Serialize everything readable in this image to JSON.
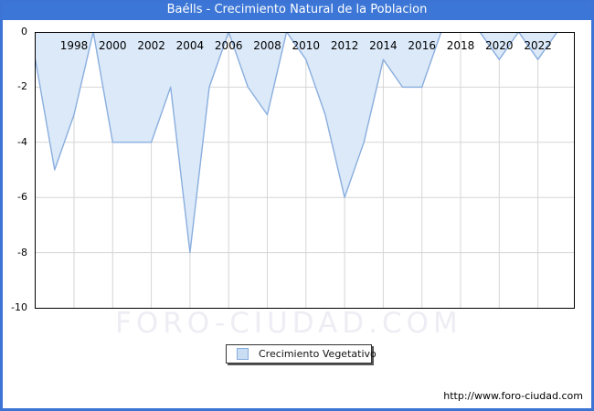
{
  "title_bar": {
    "text": "Baélls - Crecimiento Natural de la Poblacion"
  },
  "chart_data": {
    "type": "area",
    "title": "Baélls - Crecimiento Natural de la Poblacion",
    "series_name": "Crecimiento Vegetativo",
    "x": [
      1996,
      1997,
      1998,
      1999,
      2000,
      2001,
      2002,
      2003,
      2004,
      2005,
      2006,
      2007,
      2008,
      2009,
      2010,
      2011,
      2012,
      2013,
      2014,
      2015,
      2016,
      2017,
      2018,
      2019,
      2020,
      2021,
      2022,
      2023
    ],
    "values": [
      -1,
      -5,
      -3,
      0,
      -4,
      -4,
      -4,
      -2,
      -8,
      -2,
      0,
      -2,
      -3,
      0,
      -1,
      -3,
      -6,
      -4,
      -1,
      -2,
      -2,
      0,
      0,
      0,
      -1,
      0,
      -1,
      0
    ],
    "ylim": [
      -10,
      0
    ],
    "y_ticks": [
      0,
      -2,
      -4,
      -6,
      -8,
      -10
    ],
    "x_tick_years": [
      1998,
      2000,
      2002,
      2004,
      2006,
      2008,
      2010,
      2012,
      2014,
      2016,
      2018,
      2020,
      2022
    ],
    "grid": true,
    "legend_position": "bottom",
    "colors": {
      "fill": "#dbe9f8",
      "line": "#8aaede",
      "grid": "#d6d6d6",
      "plot_border": "#000000",
      "accent_blue": "#3c76d6"
    }
  },
  "legend": {
    "label": "Crecimiento Vegetativo"
  },
  "watermark": {
    "text": "FORO-CIUDAD.COM"
  },
  "footer": {
    "url": "http://www.foro-ciudad.com"
  }
}
